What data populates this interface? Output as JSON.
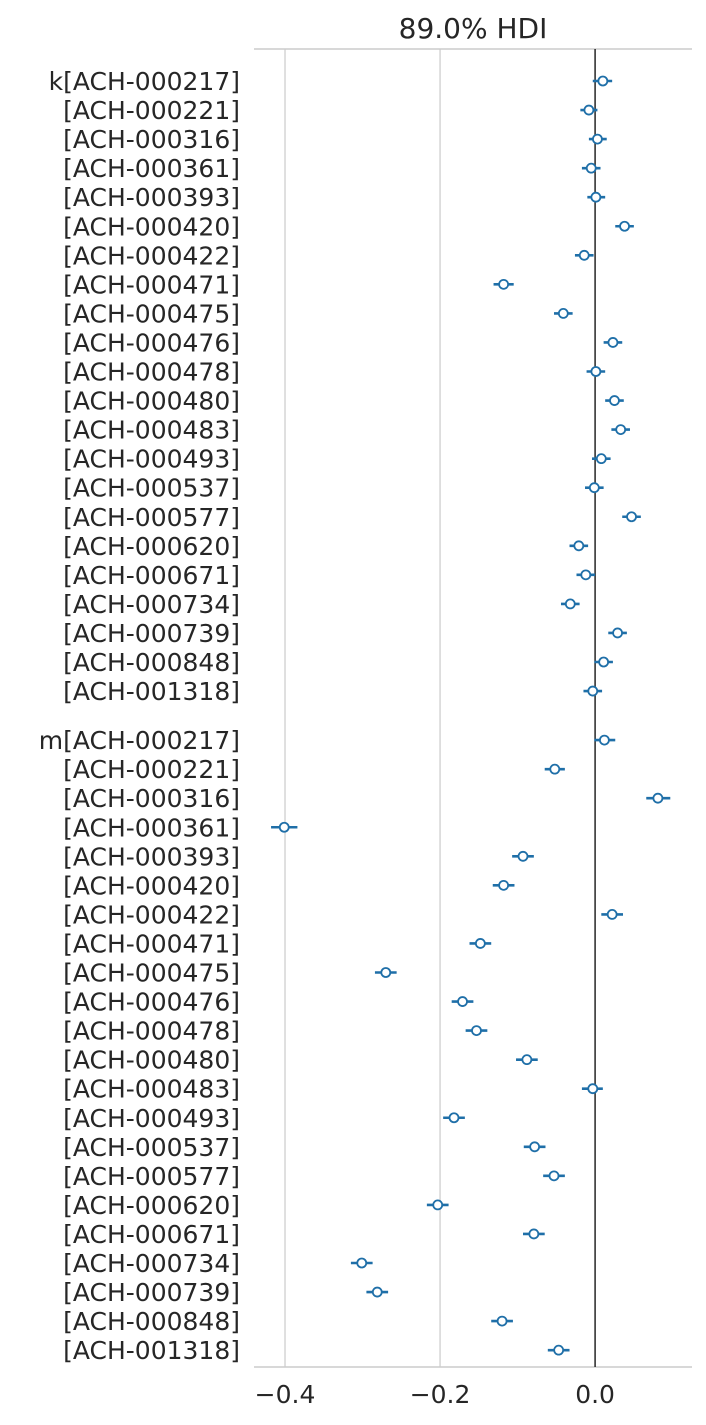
{
  "chart_data": {
    "type": "forest",
    "title": "89.0% HDI",
    "xlabel": "",
    "ylabel": "",
    "xlim": [
      -0.44,
      0.125
    ],
    "xticks": [
      -0.4,
      -0.2,
      0.0
    ],
    "xtick_labels": [
      "−0.4",
      "−0.2",
      "0.0"
    ],
    "reference_line": 0.0,
    "grid": "vertical",
    "color": "#1f6fa8",
    "groups": [
      {
        "var": "k",
        "rows": [
          {
            "label": "k[ACH-000217]",
            "mean": 0.01,
            "hdi": [
              -0.003,
              0.022
            ]
          },
          {
            "label": "[ACH-000221]",
            "mean": -0.008,
            "hdi": [
              -0.019,
              0.003
            ]
          },
          {
            "label": "[ACH-000316]",
            "mean": 0.003,
            "hdi": [
              -0.008,
              0.015
            ]
          },
          {
            "label": "[ACH-000361]",
            "mean": -0.005,
            "hdi": [
              -0.017,
              0.007
            ]
          },
          {
            "label": "[ACH-000393]",
            "mean": 0.001,
            "hdi": [
              -0.01,
              0.013
            ]
          },
          {
            "label": "[ACH-000420]",
            "mean": 0.038,
            "hdi": [
              0.026,
              0.05
            ]
          },
          {
            "label": "[ACH-000422]",
            "mean": -0.014,
            "hdi": [
              -0.026,
              -0.002
            ]
          },
          {
            "label": "[ACH-000471]",
            "mean": -0.118,
            "hdi": [
              -0.131,
              -0.105
            ]
          },
          {
            "label": "[ACH-000475]",
            "mean": -0.041,
            "hdi": [
              -0.053,
              -0.029
            ]
          },
          {
            "label": "[ACH-000476]",
            "mean": 0.023,
            "hdi": [
              0.011,
              0.035
            ]
          },
          {
            "label": "[ACH-000478]",
            "mean": 0.001,
            "hdi": [
              -0.011,
              0.013
            ]
          },
          {
            "label": "[ACH-000480]",
            "mean": 0.025,
            "hdi": [
              0.013,
              0.037
            ]
          },
          {
            "label": "[ACH-000483]",
            "mean": 0.033,
            "hdi": [
              0.021,
              0.045
            ]
          },
          {
            "label": "[ACH-000493]",
            "mean": 0.008,
            "hdi": [
              -0.004,
              0.02
            ]
          },
          {
            "label": "[ACH-000537]",
            "mean": -0.001,
            "hdi": [
              -0.013,
              0.011
            ]
          },
          {
            "label": "[ACH-000577]",
            "mean": 0.047,
            "hdi": [
              0.035,
              0.059
            ]
          },
          {
            "label": "[ACH-000620]",
            "mean": -0.021,
            "hdi": [
              -0.033,
              -0.009
            ]
          },
          {
            "label": "[ACH-000671]",
            "mean": -0.012,
            "hdi": [
              -0.024,
              0.0
            ]
          },
          {
            "label": "[ACH-000734]",
            "mean": -0.032,
            "hdi": [
              -0.044,
              -0.02
            ]
          },
          {
            "label": "[ACH-000739]",
            "mean": 0.029,
            "hdi": [
              0.017,
              0.041
            ]
          },
          {
            "label": "[ACH-000848]",
            "mean": 0.011,
            "hdi": [
              -0.001,
              0.023
            ]
          },
          {
            "label": "[ACH-001318]",
            "mean": -0.003,
            "hdi": [
              -0.015,
              0.009
            ]
          }
        ]
      },
      {
        "var": "m",
        "rows": [
          {
            "label": "m[ACH-000217]",
            "mean": 0.012,
            "hdi": [
              -0.001,
              0.026
            ]
          },
          {
            "label": "[ACH-000221]",
            "mean": -0.052,
            "hdi": [
              -0.065,
              -0.039
            ]
          },
          {
            "label": "[ACH-000316]",
            "mean": 0.081,
            "hdi": [
              0.066,
              0.097
            ]
          },
          {
            "label": "[ACH-000361]",
            "mean": -0.401,
            "hdi": [
              -0.418,
              -0.384
            ]
          },
          {
            "label": "[ACH-000393]",
            "mean": -0.093,
            "hdi": [
              -0.107,
              -0.079
            ]
          },
          {
            "label": "[ACH-000420]",
            "mean": -0.118,
            "hdi": [
              -0.132,
              -0.104
            ]
          },
          {
            "label": "[ACH-000422]",
            "mean": 0.022,
            "hdi": [
              0.008,
              0.036
            ]
          },
          {
            "label": "[ACH-000471]",
            "mean": -0.148,
            "hdi": [
              -0.162,
              -0.134
            ]
          },
          {
            "label": "[ACH-000475]",
            "mean": -0.27,
            "hdi": [
              -0.284,
              -0.256
            ]
          },
          {
            "label": "[ACH-000476]",
            "mean": -0.171,
            "hdi": [
              -0.185,
              -0.157
            ]
          },
          {
            "label": "[ACH-000478]",
            "mean": -0.153,
            "hdi": [
              -0.167,
              -0.139
            ]
          },
          {
            "label": "[ACH-000480]",
            "mean": -0.088,
            "hdi": [
              -0.102,
              -0.074
            ]
          },
          {
            "label": "[ACH-000483]",
            "mean": -0.003,
            "hdi": [
              -0.017,
              0.01
            ]
          },
          {
            "label": "[ACH-000493]",
            "mean": -0.182,
            "hdi": [
              -0.196,
              -0.168
            ]
          },
          {
            "label": "[ACH-000537]",
            "mean": -0.078,
            "hdi": [
              -0.092,
              -0.064
            ]
          },
          {
            "label": "[ACH-000577]",
            "mean": -0.053,
            "hdi": [
              -0.067,
              -0.039
            ]
          },
          {
            "label": "[ACH-000620]",
            "mean": -0.203,
            "hdi": [
              -0.217,
              -0.189
            ]
          },
          {
            "label": "[ACH-000671]",
            "mean": -0.079,
            "hdi": [
              -0.093,
              -0.065
            ]
          },
          {
            "label": "[ACH-000734]",
            "mean": -0.301,
            "hdi": [
              -0.315,
              -0.287
            ]
          },
          {
            "label": "[ACH-000739]",
            "mean": -0.281,
            "hdi": [
              -0.295,
              -0.267
            ]
          },
          {
            "label": "[ACH-000848]",
            "mean": -0.12,
            "hdi": [
              -0.134,
              -0.106
            ]
          },
          {
            "label": "[ACH-001318]",
            "mean": -0.047,
            "hdi": [
              -0.061,
              -0.033
            ]
          }
        ]
      }
    ]
  }
}
